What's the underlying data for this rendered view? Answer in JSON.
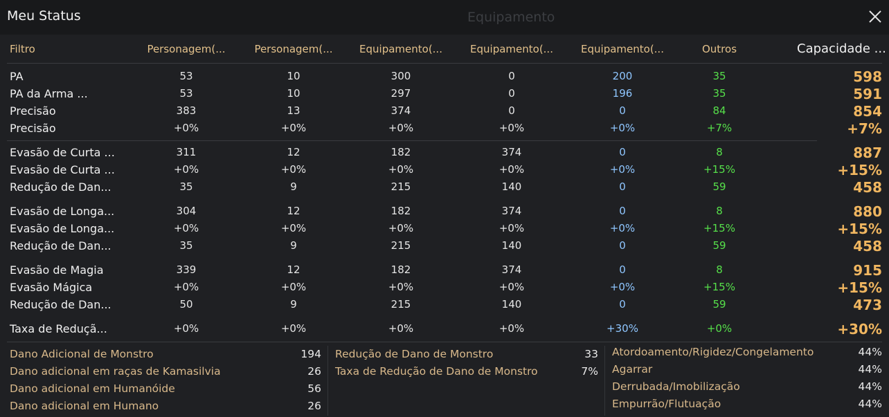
{
  "window": {
    "title": "Meu Status",
    "background_title": "Equipamento"
  },
  "headers": {
    "filter": "Filtro",
    "columns": [
      "Personagem(...",
      "Personagem(...",
      "Equipamento(...",
      "Equipamento(...",
      "Equipamento(...",
      "Outros"
    ],
    "capacity": "Capacidade ..."
  },
  "stats": [
    {
      "label": "PA",
      "values": [
        "53",
        "10",
        "300",
        "0",
        "200",
        "35"
      ],
      "total": "598"
    },
    {
      "label": "PA da Arma ...",
      "values": [
        "53",
        "10",
        "297",
        "0",
        "196",
        "35"
      ],
      "total": "591"
    },
    {
      "label": "Precisão",
      "values": [
        "383",
        "13",
        "374",
        "0",
        "0",
        "84"
      ],
      "total": "854"
    },
    {
      "label": "Precisão",
      "values": [
        "+0%",
        "+0%",
        "+0%",
        "+0%",
        "+0%",
        "+7%"
      ],
      "total": "+7%"
    },
    {
      "label": "Evasão de Curta ...",
      "values": [
        "311",
        "12",
        "182",
        "374",
        "0",
        "8"
      ],
      "total": "887"
    },
    {
      "label": "Evasão de Curta ...",
      "values": [
        "+0%",
        "+0%",
        "+0%",
        "+0%",
        "+0%",
        "+15%"
      ],
      "total": "+15%"
    },
    {
      "label": "Redução de Dan...",
      "values": [
        "35",
        "9",
        "215",
        "140",
        "0",
        "59"
      ],
      "total": "458"
    },
    {
      "label": "Evasão de Longa...",
      "values": [
        "304",
        "12",
        "182",
        "374",
        "0",
        "8"
      ],
      "total": "880"
    },
    {
      "label": "Evasão de Longa...",
      "values": [
        "+0%",
        "+0%",
        "+0%",
        "+0%",
        "+0%",
        "+15%"
      ],
      "total": "+15%"
    },
    {
      "label": "Redução de Dan...",
      "values": [
        "35",
        "9",
        "215",
        "140",
        "0",
        "59"
      ],
      "total": "458"
    },
    {
      "label": "Evasão de Magia",
      "values": [
        "339",
        "12",
        "182",
        "374",
        "0",
        "8"
      ],
      "total": "915"
    },
    {
      "label": "Evasão Mágica",
      "values": [
        "+0%",
        "+0%",
        "+0%",
        "+0%",
        "+0%",
        "+15%"
      ],
      "total": "+15%"
    },
    {
      "label": "Redução de Dan...",
      "values": [
        "50",
        "9",
        "215",
        "140",
        "0",
        "59"
      ],
      "total": "473"
    },
    {
      "label": "Taxa de Reduçã...",
      "values": [
        "+0%",
        "+0%",
        "+0%",
        "+0%",
        "+30%",
        "+0%"
      ],
      "total": "+30%"
    }
  ],
  "bottom": {
    "left": [
      {
        "label": "Dano Adicional de Monstro",
        "value": "194"
      },
      {
        "label": "Dano adicional em raças de Kamasilvia",
        "value": "26"
      },
      {
        "label": "Dano adicional em Humanóide",
        "value": "56"
      },
      {
        "label": "Dano adicional em Humano",
        "value": "26"
      }
    ],
    "middle": [
      {
        "label": "Redução de Dano de Monstro",
        "value": "33"
      },
      {
        "label": "Taxa de Redução de Dano de Monstro",
        "value": "7%"
      }
    ],
    "right": [
      {
        "label": "Atordoamento/Rigidez/Congelamento",
        "value": "44%"
      },
      {
        "label": "Agarrar",
        "value": "44%"
      },
      {
        "label": "Derrubada/Imobilização",
        "value": "44%"
      },
      {
        "label": "Empurrão/Flutuação",
        "value": "44%"
      }
    ]
  },
  "colors": {
    "header": "#e3c18b",
    "equipment_blue": "#8fc6ff",
    "others_green": "#56e04a",
    "capacity_orange": "#f0b660"
  }
}
